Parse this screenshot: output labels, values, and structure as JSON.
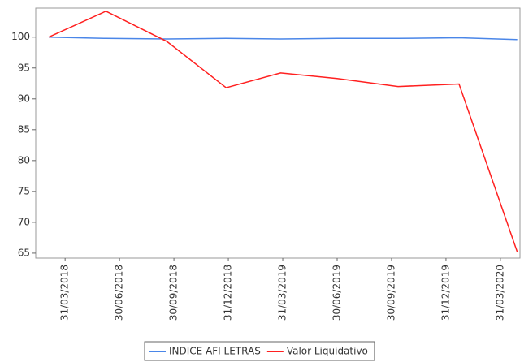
{
  "chart_data": {
    "type": "line",
    "x": [
      -0.3,
      0.75,
      1.87,
      2.96,
      3.96,
      5,
      6.12,
      7.24,
      8.31
    ],
    "xlim": [
      -0.54,
      8.36
    ],
    "xticks": [
      {
        "value": 0,
        "label": "31/03/2018"
      },
      {
        "value": 1,
        "label": "30/06/2018"
      },
      {
        "value": 2,
        "label": "30/09/2018"
      },
      {
        "value": 3,
        "label": "31/12/2018"
      },
      {
        "value": 4,
        "label": "31/03/2019"
      },
      {
        "value": 5,
        "label": "30/06/2019"
      },
      {
        "value": 6,
        "label": "30/09/2019"
      },
      {
        "value": 7,
        "label": "31/12/2019"
      },
      {
        "value": 8,
        "label": "31/03/2020"
      }
    ],
    "ylim": [
      64.2,
      104.7
    ],
    "yticks": [
      65,
      70,
      75,
      80,
      85,
      90,
      95,
      100
    ],
    "series": [
      {
        "name": "INDICE AFI LETRAS",
        "color": "#4a86e8",
        "values": [
          100,
          99.8,
          99.7,
          99.8,
          99.7,
          99.8,
          99.8,
          99.9,
          99.6
        ]
      },
      {
        "name": "Valor Liquidativo",
        "color": "#ff2020",
        "values": [
          100,
          104.2,
          99.3,
          91.8,
          94.2,
          93.3,
          92.0,
          92.4,
          65.2
        ]
      }
    ],
    "legend": "bottom"
  }
}
